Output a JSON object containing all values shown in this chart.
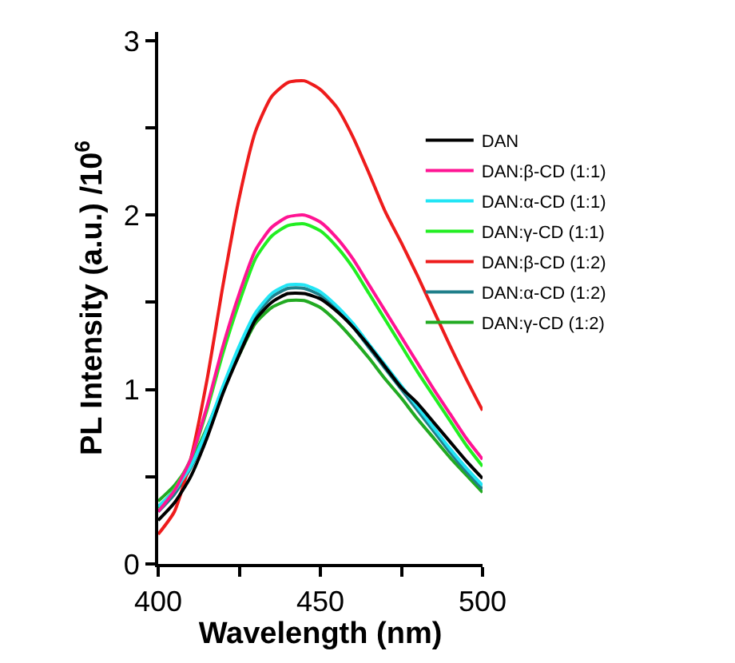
{
  "chart_data": {
    "type": "line",
    "xlabel": "Wavelength (nm)",
    "ylabel": "PL Intensity (a.u.) /10$^{6}$",
    "x": [
      400,
      405,
      410,
      415,
      420,
      425,
      430,
      435,
      440,
      445,
      450,
      455,
      460,
      465,
      470,
      475,
      480,
      485,
      490,
      495,
      500
    ],
    "xlim": [
      400,
      500
    ],
    "xticks": [
      400,
      {
        "value": 425,
        "label": null
      },
      450,
      {
        "value": 475,
        "label": null
      },
      500
    ],
    "ylim": [
      0,
      3.05
    ],
    "yticks": [
      0,
      {
        "value": 0.5,
        "label": null
      },
      1,
      {
        "value": 1.5,
        "label": null
      },
      2,
      {
        "value": 2.5,
        "label": null
      },
      3
    ],
    "grid": false,
    "legend": "top right",
    "marker": "none",
    "line_style": "solid",
    "series": [
      {
        "name": "DAN",
        "color": "#000000",
        "values": [
          0.25,
          0.35,
          0.5,
          0.72,
          0.98,
          1.2,
          1.4,
          1.5,
          1.55,
          1.55,
          1.52,
          1.45,
          1.36,
          1.25,
          1.13,
          1.01,
          0.92,
          0.81,
          0.7,
          0.59,
          0.49
        ]
      },
      {
        "name": "DAN:β-CD (1:1)",
        "color": "#ff1493",
        "values": [
          0.3,
          0.42,
          0.6,
          0.9,
          1.25,
          1.55,
          1.8,
          1.93,
          1.99,
          2.0,
          1.96,
          1.87,
          1.75,
          1.6,
          1.45,
          1.3,
          1.15,
          1.0,
          0.86,
          0.72,
          0.6
        ]
      },
      {
        "name": "DAN:α-CD (1:1)",
        "color": "#22e5f5",
        "values": [
          0.33,
          0.42,
          0.56,
          0.77,
          1.02,
          1.25,
          1.44,
          1.55,
          1.6,
          1.6,
          1.56,
          1.48,
          1.38,
          1.26,
          1.14,
          1.02,
          0.9,
          0.78,
          0.66,
          0.55,
          0.45
        ]
      },
      {
        "name": "DAN:γ-CD (1:1)",
        "color": "#22ee22",
        "values": [
          0.32,
          0.43,
          0.6,
          0.88,
          1.21,
          1.5,
          1.75,
          1.88,
          1.94,
          1.95,
          1.91,
          1.82,
          1.7,
          1.55,
          1.4,
          1.25,
          1.1,
          0.96,
          0.82,
          0.68,
          0.56
        ]
      },
      {
        "name": "DAN:β-CD (1:2)",
        "color": "#ee1c1c",
        "values": [
          0.17,
          0.3,
          0.6,
          1.05,
          1.6,
          2.1,
          2.48,
          2.68,
          2.76,
          2.77,
          2.72,
          2.62,
          2.45,
          2.24,
          2.02,
          1.84,
          1.65,
          1.45,
          1.25,
          1.06,
          0.88
        ]
      },
      {
        "name": "DAN:α-CD (1:2)",
        "color": "#1f7f8a",
        "values": [
          0.3,
          0.4,
          0.55,
          0.76,
          1.0,
          1.22,
          1.42,
          1.53,
          1.58,
          1.58,
          1.54,
          1.46,
          1.36,
          1.24,
          1.12,
          1.0,
          0.88,
          0.76,
          0.64,
          0.53,
          0.43
        ]
      },
      {
        "name": "DAN:γ-CD (1:2)",
        "color": "#22aa22",
        "values": [
          0.36,
          0.45,
          0.58,
          0.78,
          1.0,
          1.2,
          1.38,
          1.47,
          1.51,
          1.51,
          1.47,
          1.39,
          1.29,
          1.18,
          1.06,
          0.95,
          0.83,
          0.72,
          0.61,
          0.51,
          0.41
        ]
      }
    ]
  }
}
